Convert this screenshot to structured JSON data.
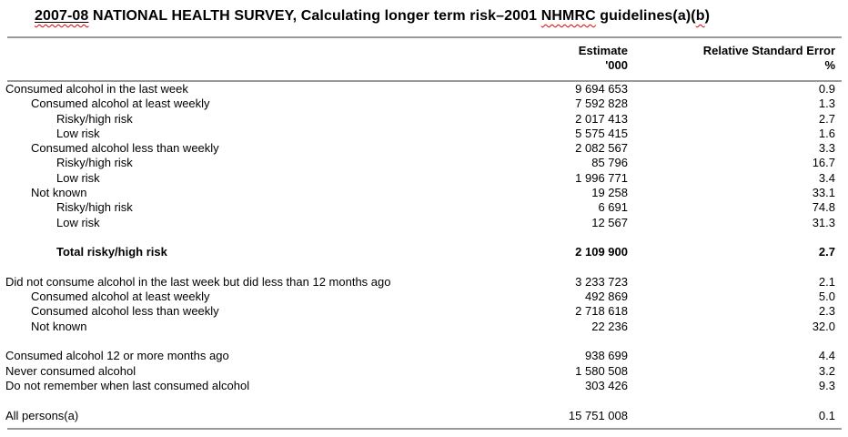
{
  "title": {
    "segments": [
      {
        "text": "2007-08",
        "style": "underline-spellcheck"
      },
      {
        "text": " NATIONAL HEALTH SURVEY, Calculating longer term risk–2001 ",
        "style": "plain"
      },
      {
        "text": "NHMRC",
        "style": "spellcheck"
      },
      {
        "text": " guidelines(a)(",
        "style": "plain"
      },
      {
        "text": "b",
        "style": "spellcheck"
      },
      {
        "text": ")",
        "style": "plain"
      }
    ]
  },
  "columns": {
    "estimate": {
      "line1": "Estimate",
      "line2": "'000"
    },
    "rse": {
      "line1": "Relative Standard Error",
      "line2": "%"
    }
  },
  "table": {
    "rows": [
      {
        "label": "Consumed alcohol in the last week",
        "indent": 0,
        "estimate": "9 694 653",
        "rse": "0.9",
        "bold": false,
        "gap_before": false
      },
      {
        "label": "Consumed alcohol at least weekly",
        "indent": 1,
        "estimate": "7 592 828",
        "rse": "1.3",
        "bold": false,
        "gap_before": false
      },
      {
        "label": "Risky/high risk",
        "indent": 2,
        "estimate": "2 017 413",
        "rse": "2.7",
        "bold": false,
        "gap_before": false
      },
      {
        "label": "Low risk",
        "indent": 2,
        "estimate": "5 575 415",
        "rse": "1.6",
        "bold": false,
        "gap_before": false
      },
      {
        "label": "Consumed alcohol less than weekly",
        "indent": 1,
        "estimate": "2 082 567",
        "rse": "3.3",
        "bold": false,
        "gap_before": false
      },
      {
        "label": "Risky/high risk",
        "indent": 2,
        "estimate": "85 796",
        "rse": "16.7",
        "bold": false,
        "gap_before": false
      },
      {
        "label": "Low risk",
        "indent": 2,
        "estimate": "1 996 771",
        "rse": "3.4",
        "bold": false,
        "gap_before": false
      },
      {
        "label": "Not known",
        "indent": 1,
        "estimate": "19 258",
        "rse": "33.1",
        "bold": false,
        "gap_before": false
      },
      {
        "label": "Risky/high risk",
        "indent": 2,
        "estimate": "6 691",
        "rse": "74.8",
        "bold": false,
        "gap_before": false
      },
      {
        "label": "Low risk",
        "indent": 2,
        "estimate": "12 567",
        "rse": "31.3",
        "bold": false,
        "gap_before": false
      },
      {
        "label": "Total risky/high risk",
        "indent": 2,
        "estimate": "2 109 900",
        "rse": "2.7",
        "bold": true,
        "gap_before": true
      },
      {
        "label": "Did not consume alcohol in the last week but did less than 12 months ago",
        "indent": 0,
        "estimate": "3 233 723",
        "rse": "2.1",
        "bold": false,
        "gap_before": true
      },
      {
        "label": "Consumed alcohol at least weekly",
        "indent": 1,
        "estimate": "492 869",
        "rse": "5.0",
        "bold": false,
        "gap_before": false
      },
      {
        "label": "Consumed alcohol less than weekly",
        "indent": 1,
        "estimate": "2 718 618",
        "rse": "2.3",
        "bold": false,
        "gap_before": false
      },
      {
        "label": "Not known",
        "indent": 1,
        "estimate": "22 236",
        "rse": "32.0",
        "bold": false,
        "gap_before": false
      },
      {
        "label": "Consumed alcohol 12 or more months ago",
        "indent": 0,
        "estimate": "938 699",
        "rse": "4.4",
        "bold": false,
        "gap_before": true
      },
      {
        "label": "Never consumed alcohol",
        "indent": 0,
        "estimate": "1 580 508",
        "rse": "3.2",
        "bold": false,
        "gap_before": false
      },
      {
        "label": "Do not remember when last consumed alcohol",
        "indent": 0,
        "estimate": "303 426",
        "rse": "9.3",
        "bold": false,
        "gap_before": false
      },
      {
        "label": "All persons(a)",
        "indent": 0,
        "estimate": "15 751 008",
        "rse": "0.1",
        "bold": false,
        "gap_before": true
      }
    ]
  },
  "colors": {
    "rule": "#9a9a9a",
    "spellcheck_underline": "#e00000",
    "text": "#000000",
    "background": "#ffffff"
  }
}
